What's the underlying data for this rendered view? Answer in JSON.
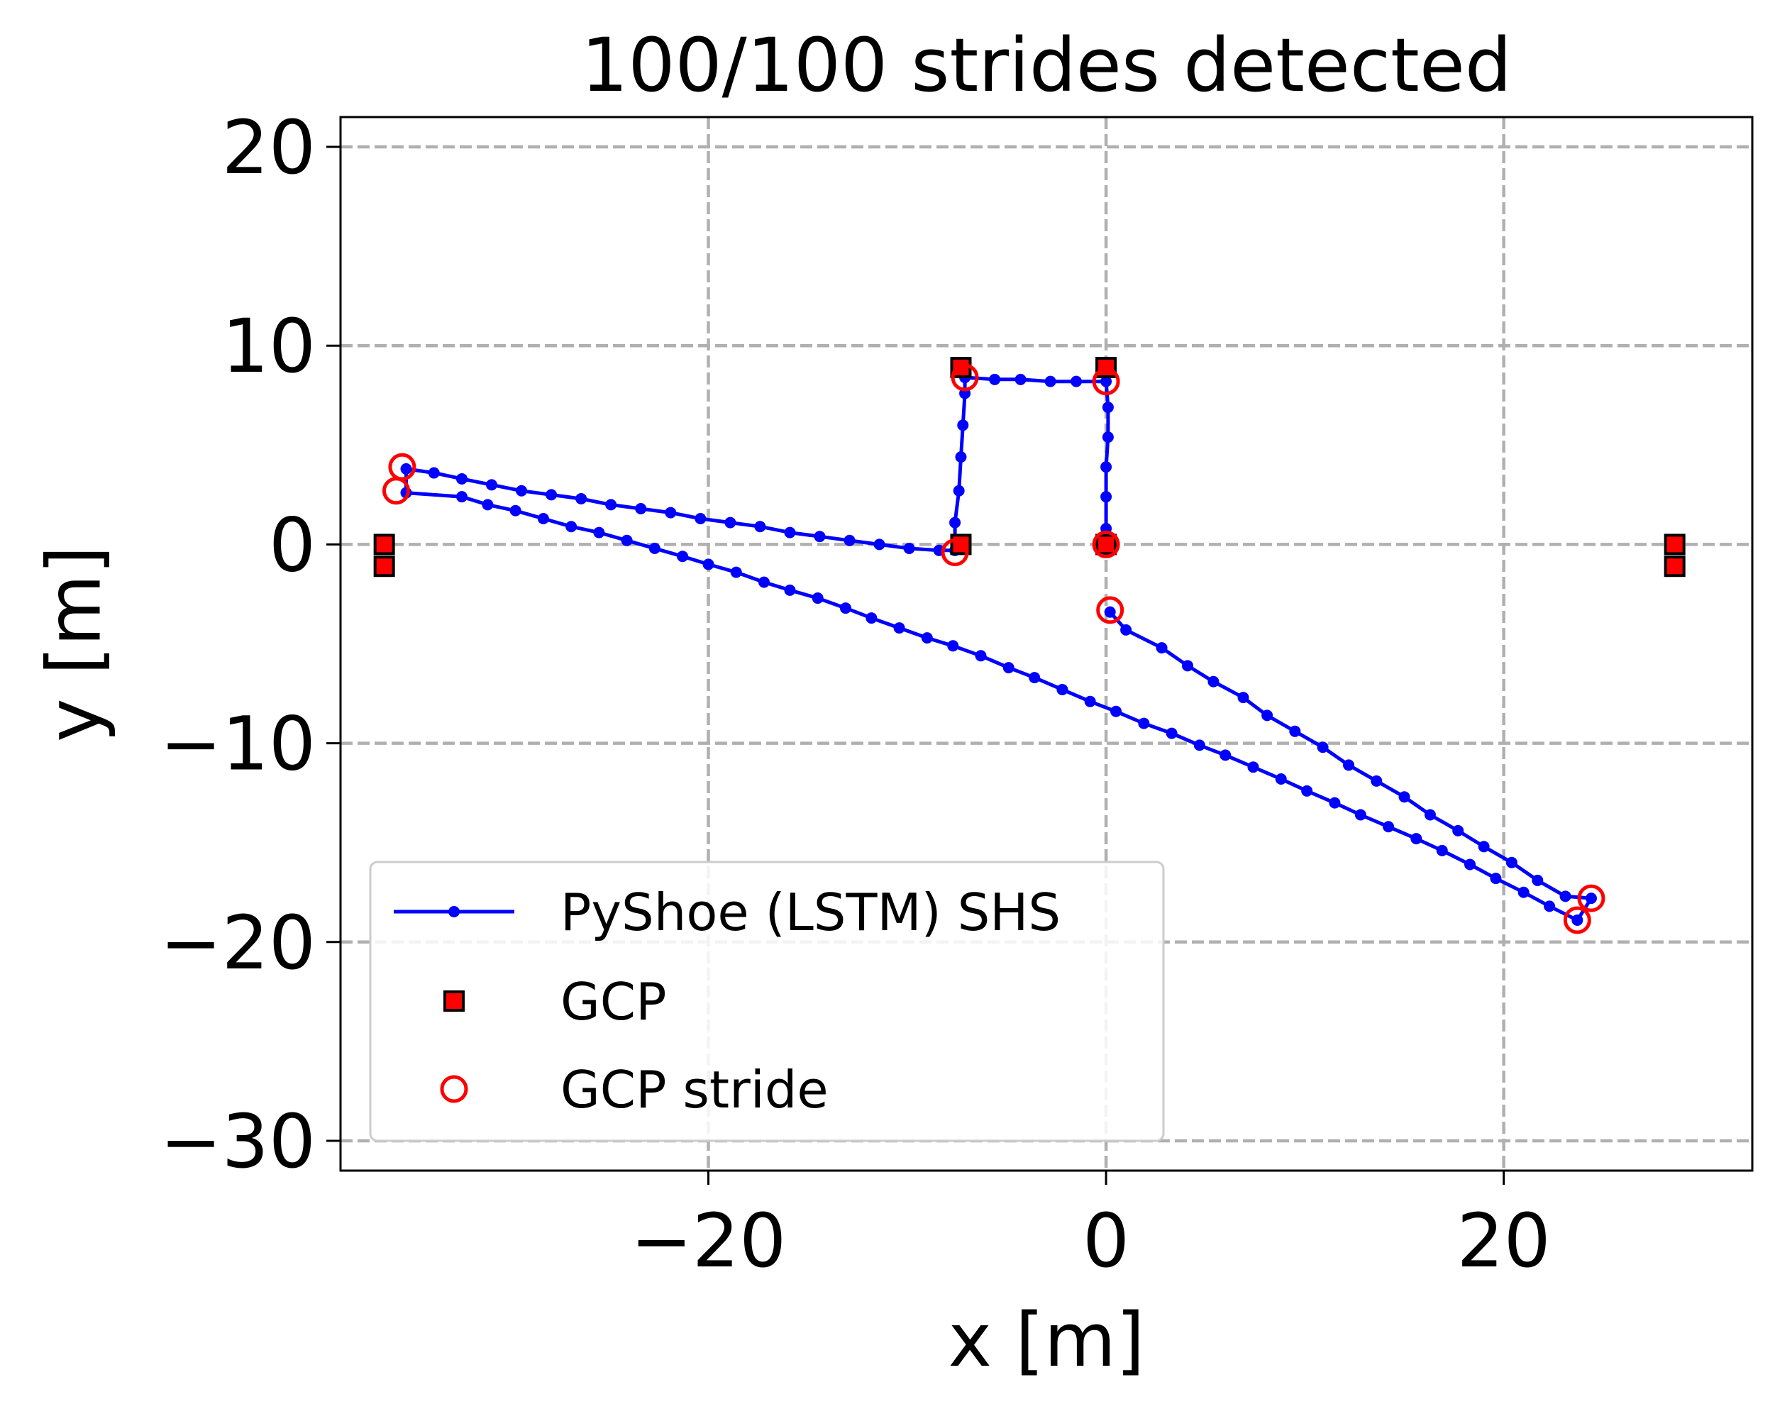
{
  "chart_data": {
    "type": "scatter",
    "title": "100/100 strides detected",
    "xlabel": "x [m]",
    "ylabel": "y [m]",
    "xlim": [
      -38.5,
      32.5
    ],
    "ylim": [
      -31.5,
      21.5
    ],
    "xticks": [
      -20,
      0,
      20
    ],
    "yticks": [
      20,
      10,
      0,
      -10,
      -20,
      -30
    ],
    "xtick_labels": [
      "−20",
      "0",
      "20"
    ],
    "ytick_labels": [
      "20",
      "10",
      "0",
      "−10",
      "−20",
      "−30"
    ],
    "grid": true,
    "legend_position": "lower-left",
    "series": [
      {
        "name": "PyShoe (LSTM) SHS",
        "style": "line-with-dots",
        "color": "#0000ff",
        "points": [
          [
            0.2,
            -3.4
          ],
          [
            1.0,
            -4.3
          ],
          [
            2.8,
            -5.2
          ],
          [
            4.1,
            -6.1
          ],
          [
            5.4,
            -6.9
          ],
          [
            6.9,
            -7.7
          ],
          [
            8.1,
            -8.6
          ],
          [
            9.5,
            -9.4
          ],
          [
            10.9,
            -10.2
          ],
          [
            12.2,
            -11.1
          ],
          [
            13.6,
            -11.9
          ],
          [
            15.0,
            -12.7
          ],
          [
            16.3,
            -13.6
          ],
          [
            17.7,
            -14.4
          ],
          [
            19.0,
            -15.2
          ],
          [
            20.4,
            -16.0
          ],
          [
            21.7,
            -16.9
          ],
          [
            23.1,
            -17.7
          ],
          [
            24.4,
            -17.8
          ],
          [
            23.7,
            -18.9
          ],
          [
            22.3,
            -18.2
          ],
          [
            21.0,
            -17.5
          ],
          [
            19.6,
            -16.8
          ],
          [
            18.3,
            -16.1
          ],
          [
            16.9,
            -15.4
          ],
          [
            15.6,
            -14.8
          ],
          [
            14.2,
            -14.2
          ],
          [
            12.8,
            -13.6
          ],
          [
            11.5,
            -13.0
          ],
          [
            10.1,
            -12.4
          ],
          [
            8.8,
            -11.8
          ],
          [
            7.4,
            -11.2
          ],
          [
            6.0,
            -10.6
          ],
          [
            4.7,
            -10.1
          ],
          [
            3.3,
            -9.5
          ],
          [
            1.9,
            -9.0
          ],
          [
            0.5,
            -8.4
          ],
          [
            -0.8,
            -7.9
          ],
          [
            -2.2,
            -7.3
          ],
          [
            -3.6,
            -6.7
          ],
          [
            -4.9,
            -6.2
          ],
          [
            -6.3,
            -5.6
          ],
          [
            -7.7,
            -5.1
          ],
          [
            -9.0,
            -4.7
          ],
          [
            -10.4,
            -4.2
          ],
          [
            -11.8,
            -3.7
          ],
          [
            -13.1,
            -3.2
          ],
          [
            -14.5,
            -2.7
          ],
          [
            -15.9,
            -2.3
          ],
          [
            -17.2,
            -1.9
          ],
          [
            -18.6,
            -1.4
          ],
          [
            -20.0,
            -1.0
          ],
          [
            -21.3,
            -0.6
          ],
          [
            -22.7,
            -0.2
          ],
          [
            -24.1,
            0.2
          ],
          [
            -25.5,
            0.6
          ],
          [
            -26.9,
            0.9
          ],
          [
            -28.3,
            1.3
          ],
          [
            -29.7,
            1.7
          ],
          [
            -31.1,
            2.0
          ],
          [
            -32.4,
            2.4
          ],
          [
            -35.2,
            2.6
          ],
          [
            -35.2,
            3.8
          ],
          [
            -33.8,
            3.6
          ],
          [
            -32.4,
            3.3
          ],
          [
            -30.9,
            3.0
          ],
          [
            -29.4,
            2.7
          ],
          [
            -27.9,
            2.5
          ],
          [
            -26.4,
            2.3
          ],
          [
            -24.9,
            2.0
          ],
          [
            -23.4,
            1.8
          ],
          [
            -21.9,
            1.6
          ],
          [
            -20.4,
            1.3
          ],
          [
            -18.9,
            1.1
          ],
          [
            -17.4,
            0.9
          ],
          [
            -15.9,
            0.6
          ],
          [
            -14.4,
            0.4
          ],
          [
            -12.9,
            0.2
          ],
          [
            -11.4,
            0.0
          ],
          [
            -9.9,
            -0.2
          ],
          [
            -8.4,
            -0.3
          ],
          [
            -7.6,
            -0.3
          ],
          [
            -7.6,
            1.1
          ],
          [
            -7.4,
            2.7
          ],
          [
            -7.3,
            4.4
          ],
          [
            -7.2,
            6.0
          ],
          [
            -7.1,
            7.6
          ],
          [
            -7.1,
            8.4
          ],
          [
            -5.6,
            8.3
          ],
          [
            -4.3,
            8.3
          ],
          [
            -2.8,
            8.2
          ],
          [
            -1.5,
            8.2
          ],
          [
            0.0,
            8.2
          ],
          [
            0.1,
            6.9
          ],
          [
            0.1,
            5.4
          ],
          [
            0.0,
            3.9
          ],
          [
            0.0,
            2.4
          ],
          [
            0.0,
            0.8
          ],
          [
            0.0,
            0.0
          ]
        ]
      },
      {
        "name": "GCP",
        "style": "square-marker",
        "color": "#ff0000",
        "edge_color": "#000000",
        "points": [
          [
            -36.3,
            0.0
          ],
          [
            -36.3,
            -1.1
          ],
          [
            -7.3,
            8.9
          ],
          [
            -7.3,
            0.0
          ],
          [
            0.0,
            8.9
          ],
          [
            0.0,
            0.0
          ],
          [
            28.6,
            0.0
          ],
          [
            28.6,
            -1.1
          ]
        ]
      },
      {
        "name": "GCP stride",
        "style": "open-circle",
        "color": "#ff0000",
        "points": [
          [
            0.2,
            -3.3
          ],
          [
            24.4,
            -17.8
          ],
          [
            23.7,
            -18.9
          ],
          [
            -35.7,
            2.7
          ],
          [
            -35.4,
            3.9
          ],
          [
            -7.6,
            -0.4
          ],
          [
            -7.1,
            8.4
          ],
          [
            0.0,
            8.2
          ],
          [
            0.0,
            0.0
          ]
        ]
      }
    ]
  }
}
